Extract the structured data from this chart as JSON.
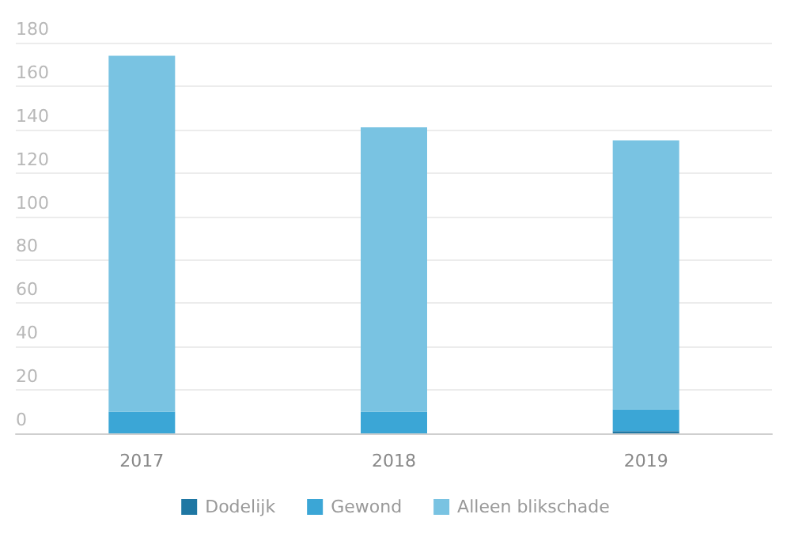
{
  "chart_data": {
    "type": "bar",
    "stacked": true,
    "categories": [
      "2017",
      "2018",
      "2019"
    ],
    "series": [
      {
        "name": "Dodelijk",
        "color": "#1f77a3",
        "values": [
          0,
          0,
          1
        ]
      },
      {
        "name": "Gewond",
        "color": "#3ba6d6",
        "values": [
          10,
          10,
          10
        ]
      },
      {
        "name": "Alleen blikschade",
        "color": "#79c3e2",
        "values": [
          164,
          131,
          124
        ]
      }
    ],
    "ylim": [
      0,
      180
    ],
    "yticks": [
      0,
      20,
      40,
      60,
      80,
      100,
      120,
      140,
      160,
      180
    ],
    "grid": "y",
    "legend": "bottom"
  }
}
